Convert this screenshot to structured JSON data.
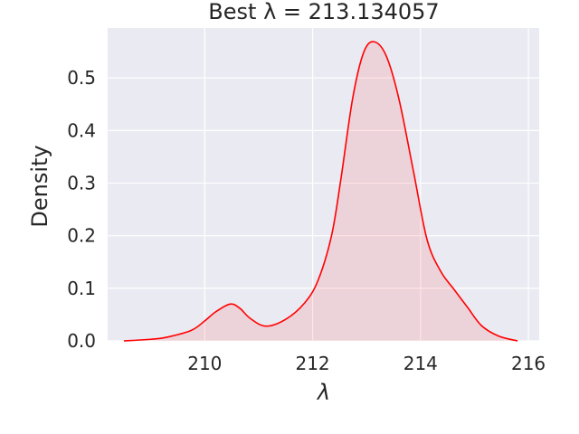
{
  "chart_data": {
    "type": "area",
    "title": "Best λ = 213.134057",
    "xlabel": "λ",
    "ylabel": "Density",
    "xlim": [
      208.2,
      216.2
    ],
    "ylim": [
      0.0,
      0.595
    ],
    "xticks": [
      210,
      212,
      214,
      216
    ],
    "xtick_labels": [
      "210",
      "212",
      "214",
      "216"
    ],
    "yticks": [
      0.0,
      0.1,
      0.2,
      0.3,
      0.4,
      0.5
    ],
    "ytick_labels": [
      "0.0",
      "0.1",
      "0.2",
      "0.3",
      "0.4",
      "0.5"
    ],
    "grid": true,
    "background_color": "#eaeaf2",
    "line_color": "#ff0000",
    "fill_color": "#ff0000",
    "fill_alpha": 0.1,
    "x": [
      208.5,
      209.0,
      209.3,
      209.75,
      210.0,
      210.2,
      210.47,
      210.65,
      210.84,
      211.13,
      211.5,
      211.85,
      212.1,
      212.35,
      212.52,
      212.74,
      212.94,
      213.13,
      213.36,
      213.6,
      213.87,
      214.12,
      214.37,
      214.62,
      214.87,
      215.13,
      215.45,
      215.8
    ],
    "y": [
      0.0,
      0.003,
      0.007,
      0.02,
      0.038,
      0.055,
      0.07,
      0.062,
      0.043,
      0.028,
      0.041,
      0.072,
      0.115,
      0.2,
      0.305,
      0.46,
      0.547,
      0.569,
      0.543,
      0.46,
      0.322,
      0.193,
      0.133,
      0.098,
      0.064,
      0.029,
      0.009,
      0.0
    ]
  }
}
